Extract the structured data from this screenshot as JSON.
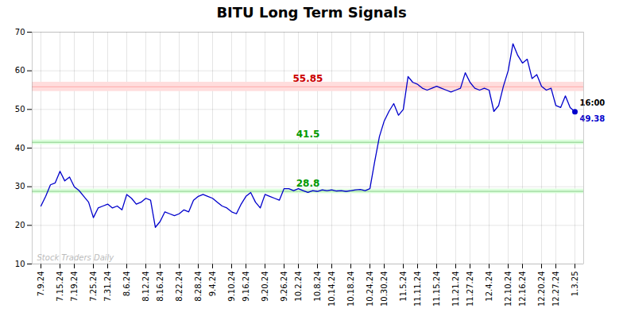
{
  "chart_data": {
    "type": "line",
    "title": "BITU Long Term Signals",
    "categories": [
      "7.9.24",
      null,
      null,
      null,
      "7.15.24",
      null,
      null,
      "7.19.24",
      null,
      null,
      null,
      "7.25.24",
      null,
      null,
      "7.31.24",
      null,
      null,
      null,
      "8.6.24",
      null,
      null,
      null,
      "8.12.24",
      null,
      null,
      "8.16.24",
      null,
      null,
      null,
      "8.22.24",
      null,
      null,
      null,
      "8.28.24",
      null,
      null,
      "9.4.24",
      null,
      null,
      null,
      "9.10.24",
      null,
      null,
      "9.16.24",
      null,
      null,
      null,
      "9.20.24",
      null,
      null,
      null,
      "9.26.24",
      null,
      null,
      "10.2.24",
      null,
      null,
      null,
      "10.8.24",
      null,
      null,
      "10.14.24",
      null,
      null,
      null,
      "10.18.24",
      null,
      null,
      null,
      "10.24.24",
      null,
      null,
      "10.30.24",
      null,
      null,
      null,
      "11.5.24",
      null,
      null,
      "11.11.24",
      null,
      null,
      null,
      "11.15.24",
      null,
      null,
      null,
      "11.21.24",
      null,
      null,
      "11.27.24",
      null,
      null,
      null,
      "12.4.24",
      null,
      null,
      null,
      "12.10.24",
      null,
      null,
      "12.16.24",
      null,
      null,
      null,
      "12.20.24",
      null,
      null,
      "12.27.24",
      null,
      null,
      null,
      "1.3.25"
    ],
    "values": [
      25.0,
      27.5,
      30.5,
      31.0,
      34.0,
      31.5,
      32.5,
      30.0,
      29.0,
      27.5,
      26.0,
      22.0,
      24.5,
      25.0,
      25.5,
      24.5,
      25.0,
      24.0,
      28.0,
      27.0,
      25.5,
      26.0,
      27.0,
      26.5,
      19.5,
      21.0,
      23.5,
      23.0,
      22.5,
      23.0,
      24.0,
      23.5,
      26.5,
      27.5,
      28.0,
      27.5,
      27.0,
      26.0,
      25.0,
      24.5,
      23.5,
      23.0,
      25.5,
      27.5,
      28.5,
      26.0,
      24.5,
      28.0,
      27.5,
      27.0,
      26.5,
      29.5,
      29.5,
      29.0,
      29.5,
      29.0,
      28.5,
      29.0,
      28.8,
      29.2,
      29.0,
      29.2,
      28.9,
      29.0,
      28.8,
      29.0,
      29.2,
      29.3,
      29.0,
      29.5,
      36.5,
      43.0,
      47.0,
      49.5,
      51.5,
      48.5,
      50.0,
      58.5,
      57.0,
      56.5,
      55.5,
      55.0,
      55.5,
      56.0,
      55.5,
      55.0,
      54.5,
      55.0,
      55.5,
      59.5,
      57.0,
      55.5,
      55.0,
      55.5,
      55.0,
      49.5,
      51.0,
      56.0,
      60.0,
      67.0,
      64.0,
      62.0,
      63.0,
      58.0,
      59.0,
      56.0,
      55.0,
      55.5,
      51.0,
      50.5,
      53.5,
      50.5,
      49.38
    ],
    "color": "#0000cc",
    "ylim": [
      10,
      70
    ],
    "yticks": [
      10,
      20,
      30,
      40,
      50,
      60,
      70
    ],
    "grid": true,
    "levels": [
      {
        "value": 55.85,
        "band_width": 1.2,
        "color": "#ffaaaa",
        "fill": "#ffdddd",
        "label_color": "#cc0000"
      },
      {
        "value": 41.5,
        "band_width": 0.6,
        "color": "#88cc88",
        "fill": "#ddffdd",
        "label_color": "#009900"
      },
      {
        "value": 28.8,
        "band_width": 0.6,
        "color": "#88cc88",
        "fill": "#ddffdd",
        "label_color": "#009900"
      }
    ],
    "last_point": {
      "time_label": "16:00",
      "value": 49.38,
      "color": "#0000cc"
    },
    "watermark": "Stock Traders Daily"
  }
}
